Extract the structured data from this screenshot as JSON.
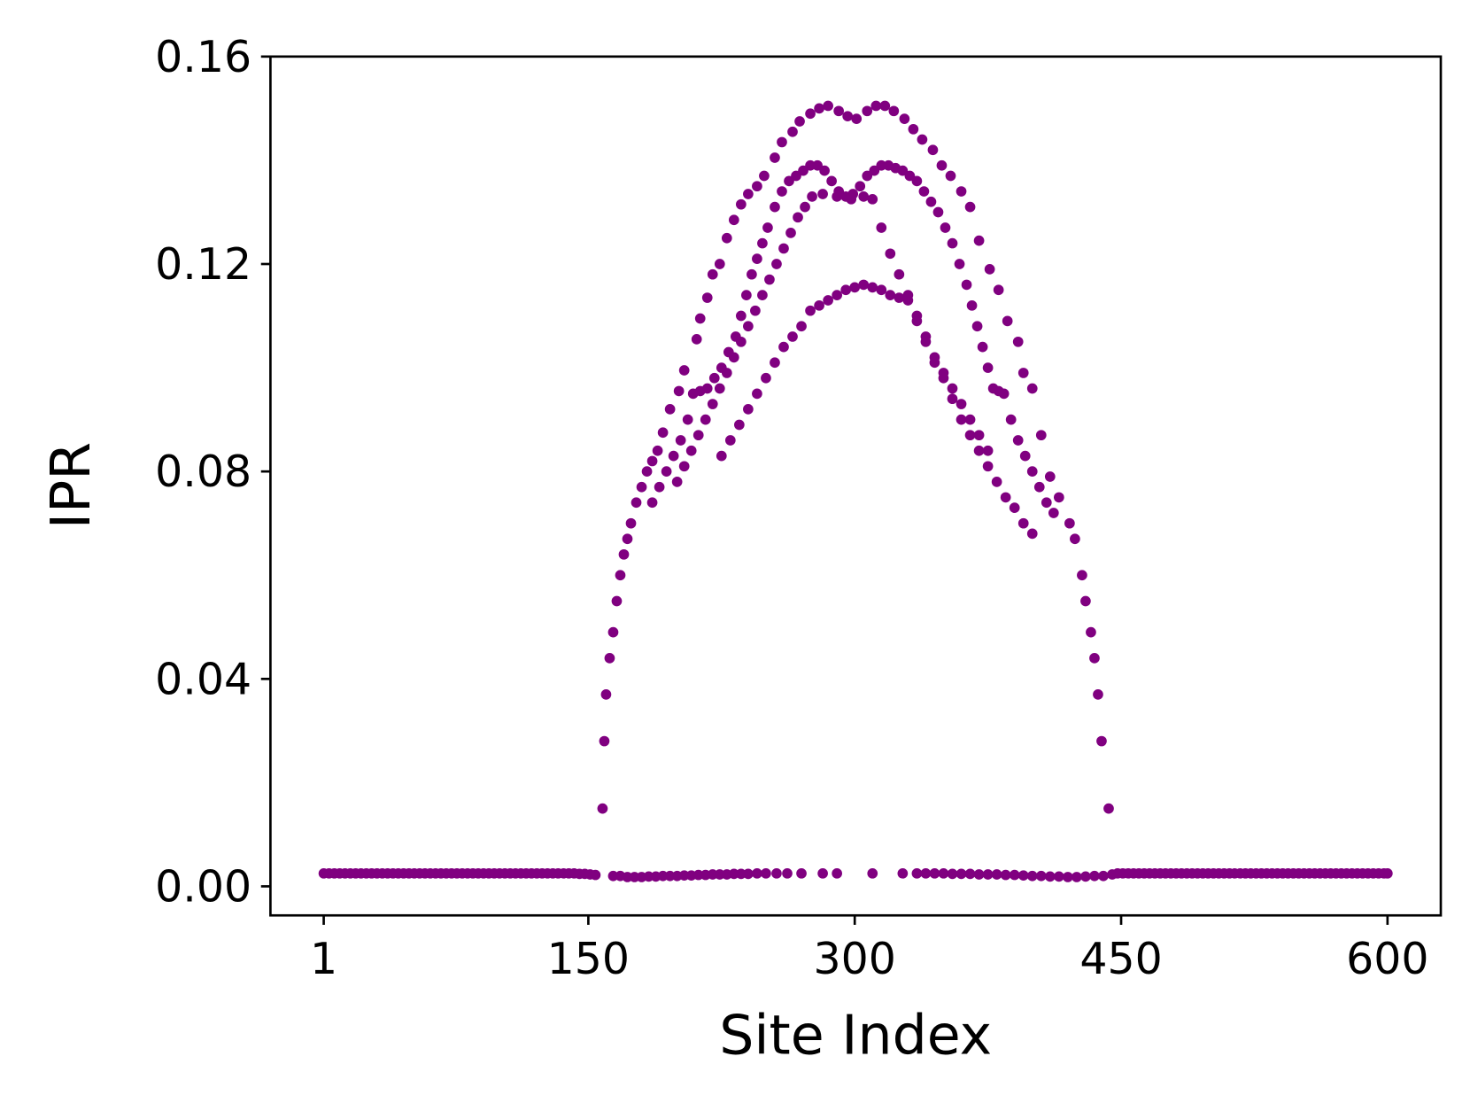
{
  "chart_data": {
    "type": "scatter",
    "color": "#800080",
    "x_label": "Site Index",
    "y_label": "IPR",
    "xlim": [
      -29,
      630
    ],
    "ylim": [
      -0.0056,
      0.16
    ],
    "xticks": [
      1,
      150,
      300,
      450,
      600
    ],
    "yticks": [
      {
        "value": 0,
        "label": "0.00"
      },
      0.04,
      0.08,
      0.12,
      0.16
    ],
    "x": [
      1,
      4,
      7,
      10,
      13,
      16,
      19,
      22,
      25,
      28,
      31,
      34,
      37,
      40,
      43,
      46,
      49,
      52,
      55,
      58,
      61,
      64,
      67,
      70,
      73,
      76,
      79,
      82,
      85,
      88,
      91,
      94,
      97,
      100,
      103,
      106,
      109,
      112,
      115,
      118,
      121,
      124,
      127,
      130,
      133,
      136,
      139,
      142,
      145,
      148,
      151,
      154,
      158,
      159,
      160,
      162,
      164,
      166,
      168,
      170,
      172,
      174,
      177,
      180,
      183,
      186,
      189,
      192,
      196,
      201,
      204,
      211,
      213,
      217,
      220,
      224,
      228,
      232,
      236,
      240,
      245,
      249,
      255,
      259,
      265,
      269,
      275,
      280,
      285,
      291,
      296,
      301,
      307,
      312,
      317,
      322,
      328,
      333,
      338,
      344,
      349,
      354,
      360,
      365,
      370,
      376,
      381,
      386,
      392,
      395,
      400,
      405,
      410,
      415,
      421,
      424,
      428,
      430,
      433,
      435,
      437,
      439,
      443,
      186,
      190,
      194,
      198,
      202,
      206,
      209,
      213,
      217,
      221,
      225,
      229,
      233,
      236,
      239,
      242,
      245,
      248,
      251,
      255,
      259,
      263,
      267,
      271,
      275,
      279,
      283,
      287,
      291,
      295,
      299,
      303,
      307,
      311,
      315,
      319,
      323,
      327,
      331,
      335,
      339,
      343,
      347,
      351,
      355,
      359,
      363,
      366,
      369,
      372,
      375,
      378,
      381,
      384,
      388,
      392,
      396,
      400,
      404,
      408,
      412,
      200,
      204,
      208,
      212,
      216,
      220,
      224,
      228,
      232,
      236,
      240,
      244,
      248,
      252,
      256,
      260,
      264,
      268,
      272,
      276,
      282,
      290,
      298,
      305,
      310,
      315,
      320,
      325,
      330,
      335,
      340,
      345,
      350,
      355,
      360,
      365,
      370,
      375,
      380,
      385,
      390,
      395,
      400,
      225,
      230,
      235,
      240,
      245,
      250,
      255,
      260,
      265,
      270,
      275,
      280,
      285,
      290,
      295,
      300,
      305,
      310,
      315,
      320,
      325,
      330,
      335,
      340,
      345,
      350,
      355,
      360,
      365,
      370,
      375,
      164,
      168,
      172,
      176,
      180,
      184,
      188,
      192,
      196,
      200,
      204,
      208,
      212,
      216,
      220,
      224,
      228,
      232,
      236,
      240,
      245,
      250,
      256,
      262,
      270,
      282,
      290,
      310,
      327,
      335,
      340,
      345,
      350,
      355,
      360,
      365,
      370,
      375,
      380,
      385,
      390,
      395,
      400,
      405,
      410,
      415,
      420,
      425,
      430,
      435,
      440,
      445,
      448,
      451,
      454,
      457,
      460,
      463,
      466,
      469,
      472,
      475,
      478,
      481,
      484,
      487,
      490,
      493,
      496,
      499,
      502,
      505,
      508,
      511,
      514,
      517,
      520,
      523,
      526,
      529,
      532,
      535,
      538,
      541,
      544,
      547,
      550,
      553,
      556,
      559,
      562,
      565,
      568,
      571,
      574,
      577,
      580,
      583,
      586,
      589,
      592,
      595,
      598,
      600
    ],
    "values": [
      0.0025,
      0.0025,
      0.0025,
      0.0025,
      0.0025,
      0.0025,
      0.0025,
      0.0025,
      0.0025,
      0.0025,
      0.0025,
      0.0025,
      0.0025,
      0.0025,
      0.0025,
      0.0025,
      0.0025,
      0.0025,
      0.0025,
      0.0025,
      0.0025,
      0.0025,
      0.0025,
      0.0025,
      0.0025,
      0.0025,
      0.0025,
      0.0025,
      0.0025,
      0.0025,
      0.0025,
      0.0025,
      0.0025,
      0.0025,
      0.0025,
      0.0025,
      0.0025,
      0.0025,
      0.0025,
      0.0025,
      0.0025,
      0.0025,
      0.0025,
      0.0025,
      0.0025,
      0.0025,
      0.0025,
      0.0025,
      0.0024,
      0.0024,
      0.0023,
      0.0022,
      0.015,
      0.028,
      0.037,
      0.044,
      0.049,
      0.055,
      0.06,
      0.064,
      0.067,
      0.07,
      0.074,
      0.077,
      0.08,
      0.082,
      0.084,
      0.0875,
      0.092,
      0.0955,
      0.0995,
      0.1055,
      0.1095,
      0.1135,
      0.118,
      0.12,
      0.125,
      0.1285,
      0.1315,
      0.1335,
      0.135,
      0.137,
      0.1405,
      0.1435,
      0.1455,
      0.1475,
      0.149,
      0.15,
      0.1505,
      0.1495,
      0.1485,
      0.148,
      0.1495,
      0.1505,
      0.1505,
      0.1495,
      0.148,
      0.146,
      0.144,
      0.142,
      0.139,
      0.137,
      0.134,
      0.131,
      0.1245,
      0.119,
      0.115,
      0.109,
      0.105,
      0.099,
      0.096,
      0.087,
      0.079,
      0.075,
      0.07,
      0.067,
      0.06,
      0.055,
      0.049,
      0.044,
      0.037,
      0.028,
      0.015,
      0.074,
      0.077,
      0.08,
      0.083,
      0.086,
      0.09,
      0.095,
      0.0955,
      0.096,
      0.098,
      0.1,
      0.103,
      0.106,
      0.11,
      0.114,
      0.118,
      0.121,
      0.124,
      0.127,
      0.131,
      0.134,
      0.136,
      0.137,
      0.138,
      0.139,
      0.139,
      0.138,
      0.136,
      0.134,
      0.133,
      0.1335,
      0.135,
      0.137,
      0.138,
      0.139,
      0.139,
      0.1385,
      0.138,
      0.137,
      0.136,
      0.134,
      0.132,
      0.13,
      0.127,
      0.124,
      0.12,
      0.116,
      0.112,
      0.108,
      0.104,
      0.1,
      0.096,
      0.0955,
      0.095,
      0.09,
      0.086,
      0.083,
      0.08,
      0.077,
      0.074,
      0.072,
      0.078,
      0.081,
      0.084,
      0.087,
      0.09,
      0.093,
      0.096,
      0.099,
      0.102,
      0.105,
      0.108,
      0.111,
      0.114,
      0.117,
      0.12,
      0.123,
      0.126,
      0.129,
      0.131,
      0.133,
      0.1335,
      0.133,
      0.1325,
      0.133,
      0.1325,
      0.127,
      0.122,
      0.118,
      0.113,
      0.109,
      0.105,
      0.101,
      0.098,
      0.094,
      0.09,
      0.087,
      0.084,
      0.081,
      0.078,
      0.075,
      0.073,
      0.07,
      0.068,
      0.083,
      0.086,
      0.089,
      0.092,
      0.095,
      0.098,
      0.101,
      0.104,
      0.106,
      0.108,
      0.111,
      0.112,
      0.113,
      0.114,
      0.115,
      0.1155,
      0.116,
      0.1155,
      0.115,
      0.114,
      0.1135,
      0.114,
      0.11,
      0.106,
      0.102,
      0.099,
      0.096,
      0.093,
      0.09,
      0.087,
      0.084,
      0.002,
      0.002,
      0.0018,
      0.0018,
      0.0018,
      0.0019,
      0.0019,
      0.002,
      0.002,
      0.002,
      0.0021,
      0.0021,
      0.0022,
      0.0022,
      0.0023,
      0.0023,
      0.0023,
      0.0024,
      0.0024,
      0.0024,
      0.0025,
      0.0025,
      0.0025,
      0.0025,
      0.0025,
      0.0025,
      0.0025,
      0.0025,
      0.0025,
      0.0025,
      0.0025,
      0.0025,
      0.0025,
      0.0024,
      0.0024,
      0.0024,
      0.0023,
      0.0023,
      0.0023,
      0.0022,
      0.0022,
      0.0021,
      0.002,
      0.002,
      0.0019,
      0.0019,
      0.0018,
      0.0018,
      0.0019,
      0.002,
      0.002,
      0.0023,
      0.0025,
      0.0025,
      0.0025,
      0.0025,
      0.0025,
      0.0025,
      0.0025,
      0.0025,
      0.0025,
      0.0025,
      0.0025,
      0.0025,
      0.0025,
      0.0025,
      0.0025,
      0.0025,
      0.0025,
      0.0025,
      0.0025,
      0.0025,
      0.0025,
      0.0025,
      0.0025,
      0.0025,
      0.0025,
      0.0025,
      0.0025,
      0.0025,
      0.0025,
      0.0025,
      0.0025,
      0.0025,
      0.0025,
      0.0025,
      0.0025,
      0.0025,
      0.0025,
      0.0025,
      0.0025,
      0.0025,
      0.0025,
      0.0025,
      0.0025,
      0.0025,
      0.0025,
      0.0025,
      0.0025,
      0.0025,
      0.0025,
      0.0025,
      0.0025,
      0.0025
    ]
  }
}
